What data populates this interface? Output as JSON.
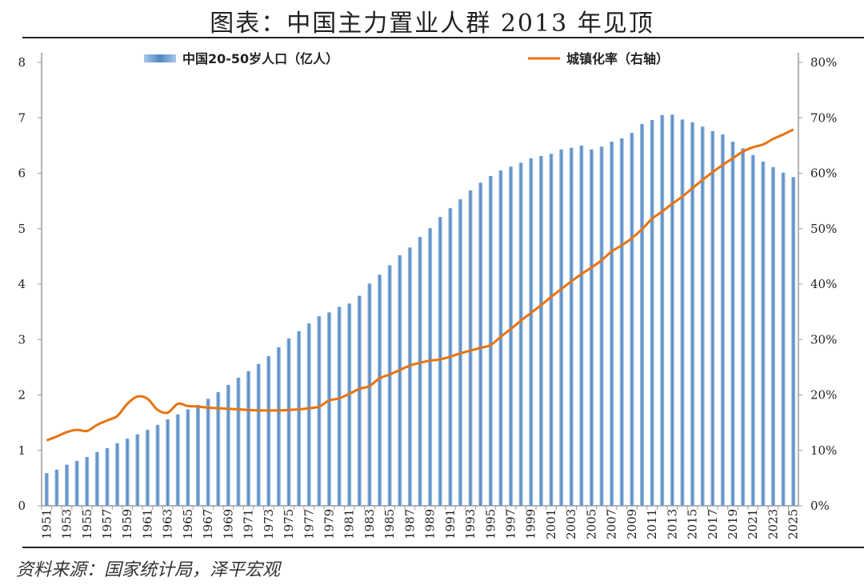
{
  "title": "图表：中国主力置业人群 2013 年见顶",
  "source": "资料来源：国家统计局，泽平宏观",
  "colors": {
    "bar": "#5b8fc7",
    "line": "#e8730f"
  },
  "chart_data": {
    "type": "bar+line",
    "title": "图表：中国主力置业人群 2013 年见顶",
    "x": [
      1951,
      1952,
      1953,
      1954,
      1955,
      1956,
      1957,
      1958,
      1959,
      1960,
      1961,
      1962,
      1963,
      1964,
      1965,
      1966,
      1967,
      1968,
      1969,
      1970,
      1971,
      1972,
      1973,
      1974,
      1975,
      1976,
      1977,
      1978,
      1979,
      1980,
      1981,
      1982,
      1983,
      1984,
      1985,
      1986,
      1987,
      1988,
      1989,
      1990,
      1991,
      1992,
      1993,
      1994,
      1995,
      1996,
      1997,
      1998,
      1999,
      2000,
      2001,
      2002,
      2003,
      2004,
      2005,
      2006,
      2007,
      2008,
      2009,
      2010,
      2011,
      2012,
      2013,
      2014,
      2015,
      2016,
      2017,
      2018,
      2019,
      2020,
      2021,
      2022,
      2023,
      2024,
      2025
    ],
    "x_tick_labels": [
      "1951",
      "1953",
      "1955",
      "1957",
      "1959",
      "1961",
      "1963",
      "1965",
      "1967",
      "1969",
      "1971",
      "1973",
      "1975",
      "1977",
      "1979",
      "1981",
      "1983",
      "1985",
      "1987",
      "1989",
      "1991",
      "1993",
      "1995",
      "1997",
      "1999",
      "2001",
      "2003",
      "2005",
      "2007",
      "2009",
      "2011",
      "2013",
      "2015",
      "2017",
      "2019",
      "2021",
      "2023",
      "2025"
    ],
    "series": [
      {
        "name": "中国20-50岁人口（亿人）",
        "type": "bar",
        "axis": "left",
        "values": [
          0.59,
          0.65,
          0.74,
          0.81,
          0.88,
          0.97,
          1.04,
          1.13,
          1.21,
          1.29,
          1.37,
          1.46,
          1.56,
          1.65,
          1.74,
          1.82,
          1.93,
          2.05,
          2.18,
          2.31,
          2.43,
          2.56,
          2.7,
          2.86,
          3.02,
          3.15,
          3.29,
          3.42,
          3.49,
          3.59,
          3.65,
          3.79,
          4.01,
          4.17,
          4.34,
          4.52,
          4.66,
          4.85,
          5.01,
          5.21,
          5.37,
          5.53,
          5.69,
          5.83,
          5.95,
          6.05,
          6.12,
          6.19,
          6.27,
          6.31,
          6.35,
          6.43,
          6.46,
          6.5,
          6.43,
          6.48,
          6.57,
          6.63,
          6.73,
          6.89,
          6.96,
          7.05,
          7.06,
          6.97,
          6.92,
          6.84,
          6.76,
          6.7,
          6.57,
          6.45,
          6.33,
          6.21,
          6.11,
          6.01,
          5.93
        ]
      },
      {
        "name": "城镇化率（右轴）",
        "type": "line",
        "axis": "right",
        "values": [
          11.8,
          12.5,
          13.3,
          13.7,
          13.5,
          14.6,
          15.4,
          16.2,
          18.4,
          19.7,
          19.3,
          17.3,
          16.8,
          18.4,
          18.0,
          17.9,
          17.7,
          17.6,
          17.5,
          17.4,
          17.3,
          17.2,
          17.2,
          17.2,
          17.3,
          17.4,
          17.6,
          17.9,
          19.0,
          19.4,
          20.2,
          21.1,
          21.6,
          23.0,
          23.7,
          24.5,
          25.3,
          25.8,
          26.2,
          26.4,
          26.9,
          27.5,
          28.0,
          28.5,
          29.0,
          30.5,
          31.9,
          33.4,
          34.8,
          36.2,
          37.7,
          39.1,
          40.5,
          41.8,
          43.0,
          44.3,
          45.9,
          47.0,
          48.3,
          49.9,
          51.8,
          53.1,
          54.5,
          55.8,
          57.3,
          58.8,
          60.2,
          61.5,
          62.7,
          63.9,
          64.7,
          65.2,
          66.2,
          67.0,
          67.9
        ]
      }
    ],
    "yleft": {
      "range": [
        0,
        8
      ],
      "ticks": [
        "0",
        "1",
        "2",
        "3",
        "4",
        "5",
        "6",
        "7",
        "8"
      ]
    },
    "yright": {
      "range": [
        0,
        80
      ],
      "ticks": [
        "0%",
        "10%",
        "20%",
        "30%",
        "40%",
        "50%",
        "60%",
        "70%",
        "80%"
      ]
    },
    "legend_placement": "top",
    "grid": false
  }
}
